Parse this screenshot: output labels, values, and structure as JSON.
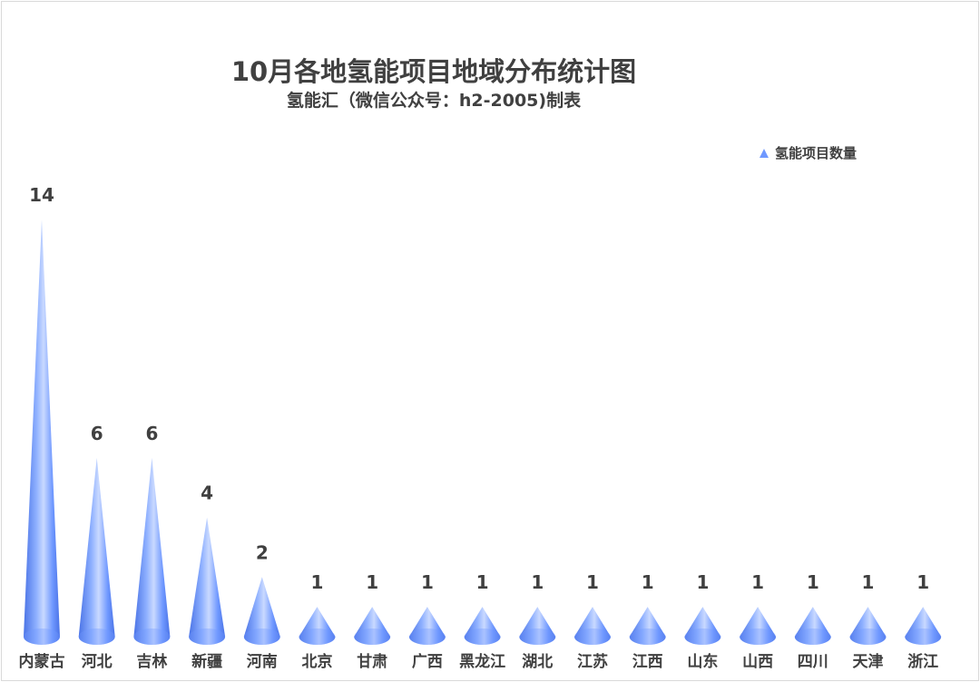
{
  "chart_data": {
    "type": "bar",
    "title": "10月各地氢能项目地域分布统计图",
    "subtitle": "氢能汇（微信公众号：h2-2005)制表",
    "categories": [
      "内蒙古",
      "河北",
      "吉林",
      "新疆",
      "河南",
      "北京",
      "甘肃",
      "广西",
      "黑龙江",
      "湖北",
      "江苏",
      "江西",
      "山东",
      "山西",
      "四川",
      "天津",
      "浙江"
    ],
    "series": [
      {
        "name": "氢能项目数量",
        "values": [
          14,
          6,
          6,
          4,
          2,
          1,
          1,
          1,
          1,
          1,
          1,
          1,
          1,
          1,
          1,
          1,
          1
        ]
      }
    ],
    "ylim": [
      0,
      14
    ],
    "grid": false,
    "legend_position": "top-right",
    "bar_shape": "cone",
    "colors": {
      "bar_light": "#c9d9ff",
      "bar_mid": "#6f98ff",
      "bar_dark": "#4a73e6"
    }
  }
}
